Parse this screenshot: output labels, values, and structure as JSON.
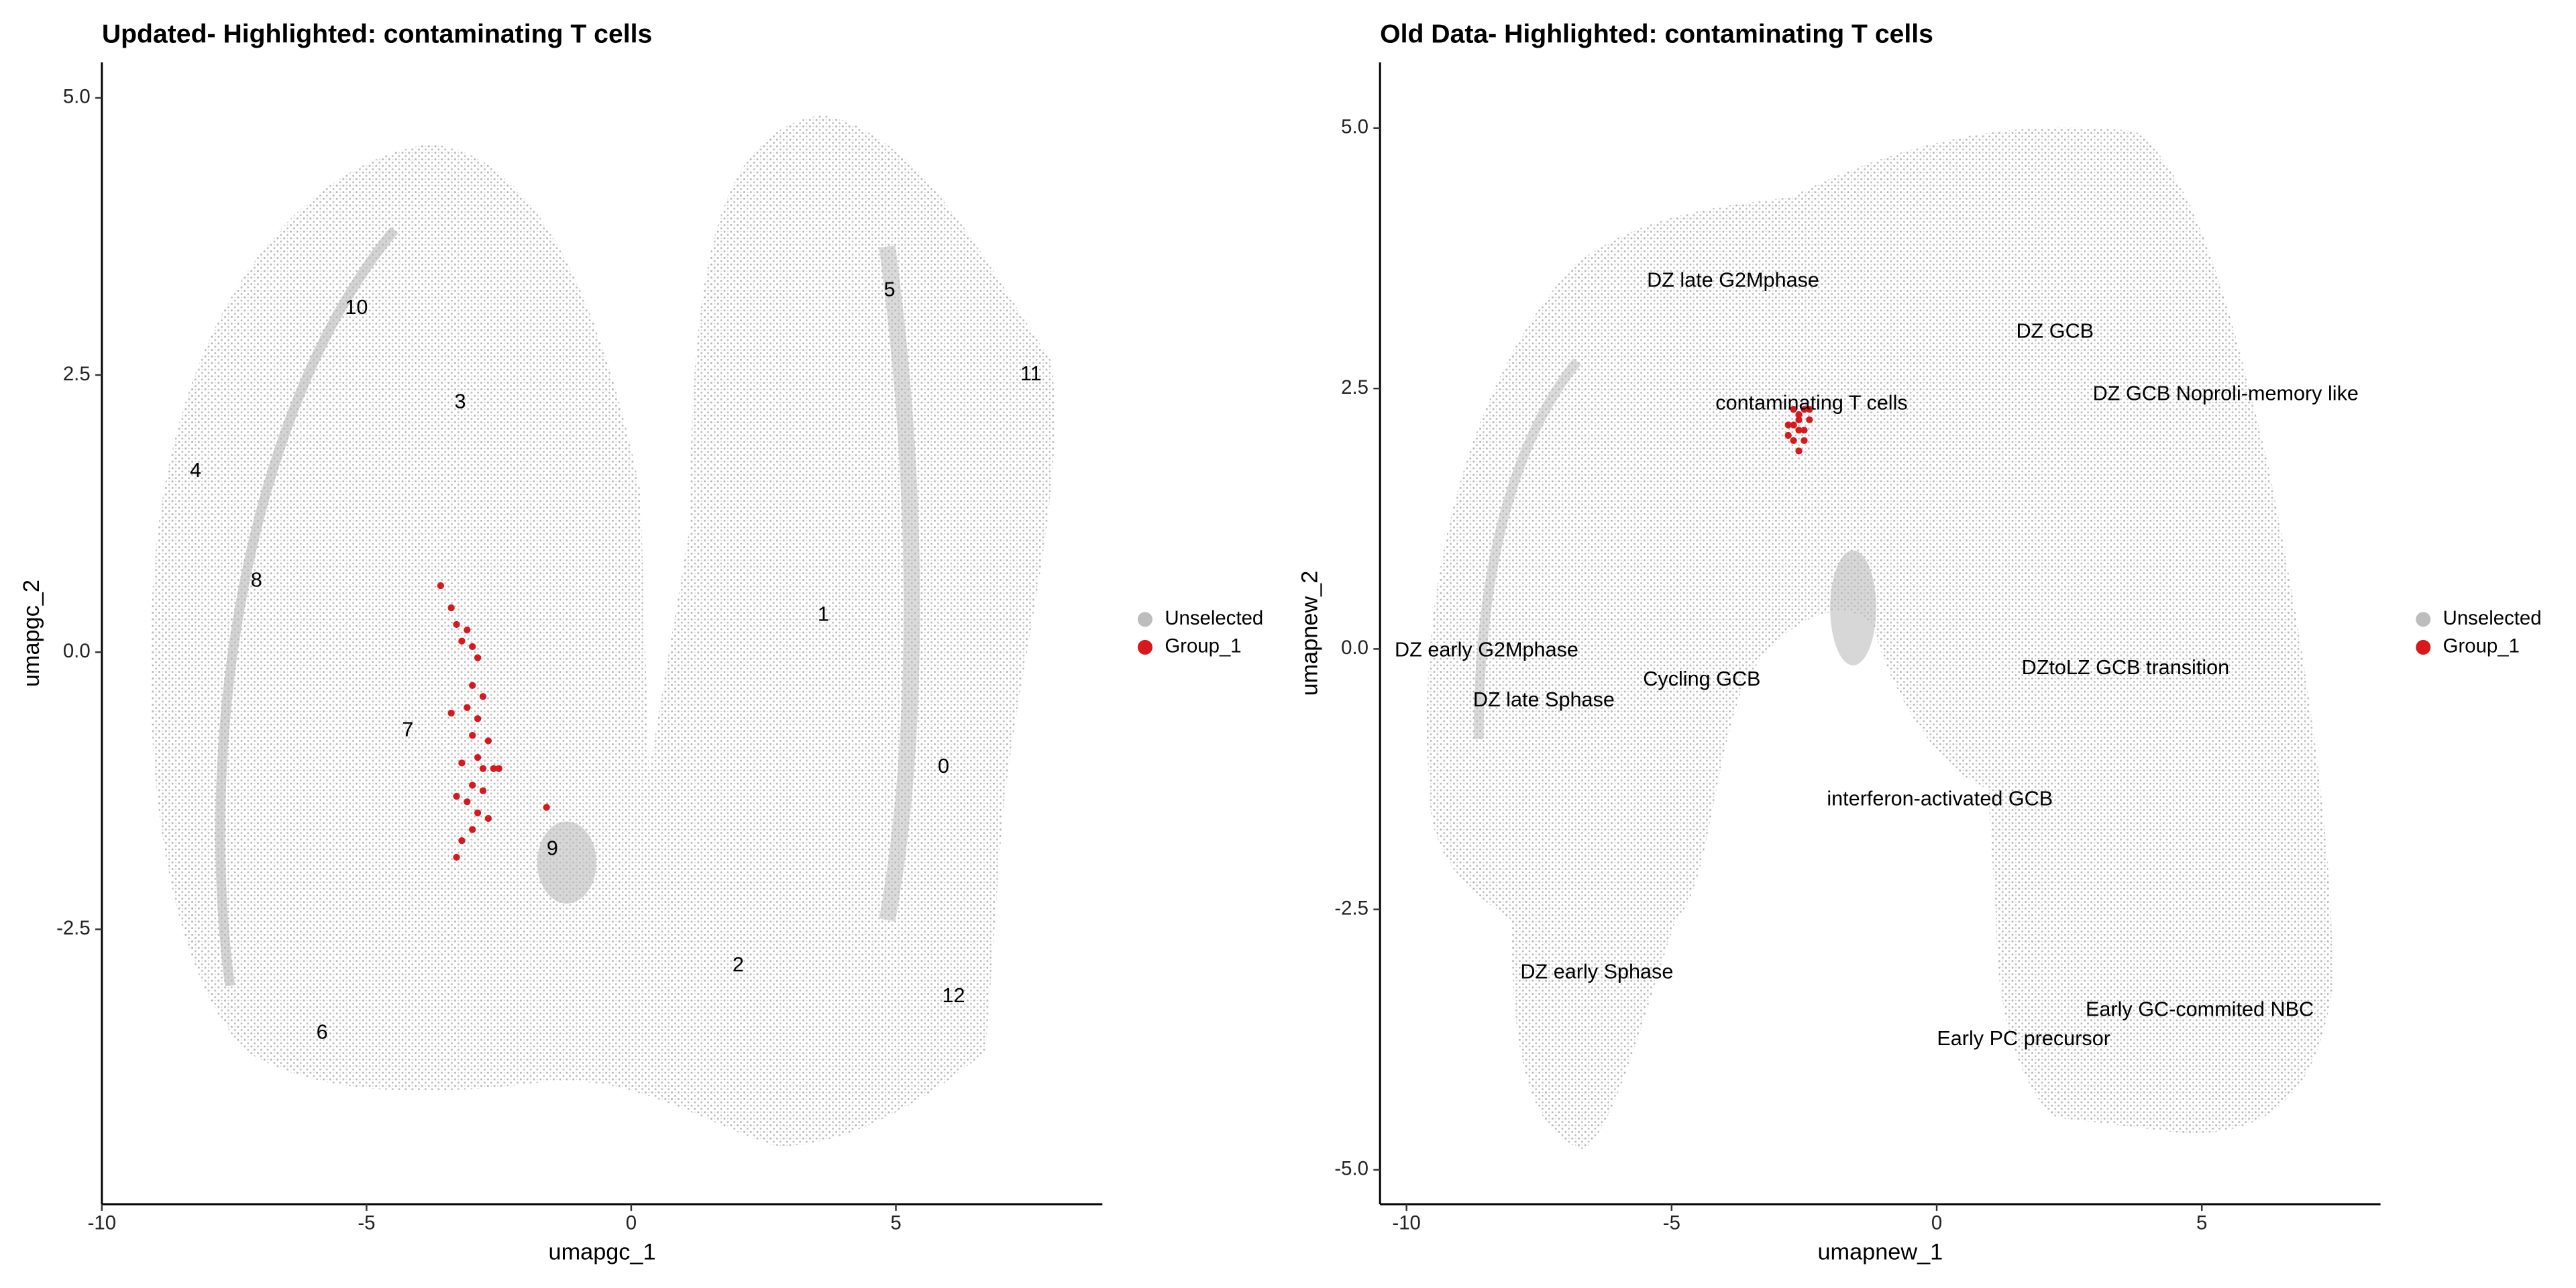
{
  "chart_data": [
    {
      "type": "scatter",
      "title": "Updated- Highlighted: contaminating T cells",
      "x_label": "umapgc_1",
      "y_label": "umapgc_2",
      "xlim": [
        -10,
        8.9
      ],
      "ylim": [
        -4.98,
        5.32
      ],
      "xticks": [
        -10,
        -5,
        0,
        5
      ],
      "yticks": [
        {
          "value": -2.5,
          "label": "-2.5"
        },
        {
          "value": 0,
          "label": "0.0"
        },
        {
          "value": 2.5,
          "label": "2.5"
        },
        {
          "value": 5,
          "label": "5.0"
        }
      ],
      "legend": "right",
      "series": [
        {
          "name": "Unselected",
          "color": "#bdbdbd"
        },
        {
          "name": "Group_1",
          "color": "#d7191c",
          "x": [
            -3.6,
            -3.4,
            -3.3,
            -3.1,
            -3.0,
            -2.9,
            -3.2,
            -3.0,
            -2.8,
            -3.1,
            -2.9,
            -3.0,
            -2.7,
            -2.9,
            -3.2,
            -2.8,
            -3.0,
            -2.6,
            -3.1,
            -2.9,
            -2.7,
            -3.3,
            -3.0,
            -2.8,
            -3.2,
            -3.3,
            -1.6,
            -2.5,
            -3.4
          ],
          "y": [
            0.6,
            0.4,
            0.25,
            0.2,
            0.05,
            -0.05,
            0.1,
            -0.3,
            -0.4,
            -0.5,
            -0.6,
            -0.75,
            -0.8,
            -0.95,
            -1.0,
            -1.05,
            -1.2,
            -1.05,
            -1.35,
            -1.45,
            -1.5,
            -1.3,
            -1.6,
            -1.25,
            -1.7,
            -1.85,
            -1.4,
            -1.05,
            -0.55
          ]
        }
      ],
      "annotations": [
        {
          "text": "10",
          "x": -5.19,
          "y": 3.1
        },
        {
          "text": "5",
          "x": 4.88,
          "y": 3.26
        },
        {
          "text": "11",
          "x": 7.55,
          "y": 2.5
        },
        {
          "text": "3",
          "x": -3.23,
          "y": 2.25
        },
        {
          "text": "4",
          "x": -8.23,
          "y": 1.63
        },
        {
          "text": "8",
          "x": -7.08,
          "y": 0.64
        },
        {
          "text": "1",
          "x": 3.63,
          "y": 0.33
        },
        {
          "text": "7",
          "x": -4.22,
          "y": -0.71
        },
        {
          "text": "0",
          "x": 5.9,
          "y": -1.04
        },
        {
          "text": "9",
          "x": -1.49,
          "y": -1.78
        },
        {
          "text": "2",
          "x": 2.02,
          "y": -2.83
        },
        {
          "text": "12",
          "x": 6.09,
          "y": -3.11
        },
        {
          "text": "6",
          "x": -5.84,
          "y": -3.44
        }
      ]
    },
    {
      "type": "scatter",
      "title": "Old Data- Highlighted: contaminating T cells",
      "x_label": "umapnew_1",
      "y_label": "umapnew_2",
      "xlim": [
        -10.5,
        8.37
      ],
      "ylim": [
        -5.33,
        5.63
      ],
      "xticks": [
        -10,
        -5,
        0,
        5
      ],
      "yticks": [
        {
          "value": -5,
          "label": "-5.0"
        },
        {
          "value": -2.5,
          "label": "-2.5"
        },
        {
          "value": 0,
          "label": "0.0"
        },
        {
          "value": 2.5,
          "label": "2.5"
        },
        {
          "value": 5,
          "label": "5.0"
        }
      ],
      "legend": "right",
      "series": [
        {
          "name": "Unselected",
          "color": "#bdbdbd"
        },
        {
          "name": "Group_1",
          "color": "#d7191c",
          "x": [
            -2.7,
            -2.6,
            -2.5,
            -2.4,
            -2.8,
            -2.6,
            -2.5,
            -2.7,
            -2.4,
            -2.6,
            -2.7,
            -2.8,
            -2.5,
            -2.6
          ],
          "y": [
            2.15,
            2.25,
            2.3,
            2.2,
            2.05,
            2.1,
            2.0,
            2.3,
            2.3,
            2.2,
            2.0,
            2.15,
            2.1,
            1.9
          ]
        }
      ],
      "annotations": [
        {
          "text": "DZ late G2Mphase",
          "x": -3.84,
          "y": 3.53
        },
        {
          "text": "DZ GCB",
          "x": 2.23,
          "y": 3.04
        },
        {
          "text": "contaminating T cells",
          "x": -2.36,
          "y": 2.35
        },
        {
          "text": "DZ GCB Noproli-memory like",
          "x": 5.45,
          "y": 2.44
        },
        {
          "text": "DZ early G2Mphase",
          "x": -8.49,
          "y": -0.02
        },
        {
          "text": "Cycling GCB",
          "x": -4.43,
          "y": -0.3
        },
        {
          "text": "DZtoLZ GCB transition",
          "x": 3.56,
          "y": -0.19
        },
        {
          "text": "DZ late Sphase",
          "x": -7.41,
          "y": -0.5
        },
        {
          "text": "interferon-activated GCB",
          "x": 0.06,
          "y": -1.45
        },
        {
          "text": "DZ early  Sphase",
          "x": -6.41,
          "y": -3.11
        },
        {
          "text": "Early GC-commited NBC",
          "x": 4.96,
          "y": -3.47
        },
        {
          "text": "Early PC precursor",
          "x": 1.64,
          "y": -3.75
        }
      ]
    }
  ]
}
